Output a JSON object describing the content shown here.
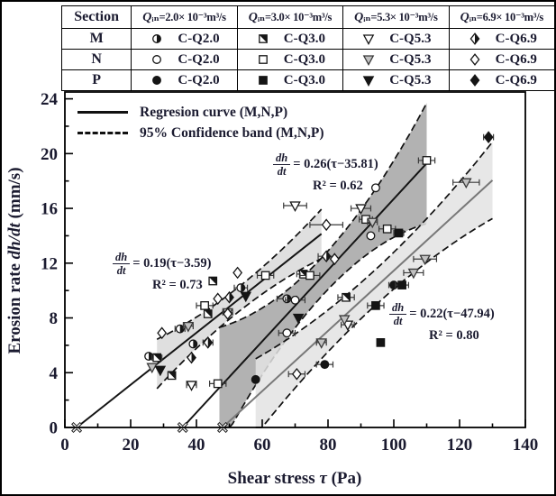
{
  "table": {
    "header_section": "Section",
    "q_headers": [
      {
        "q": "Q",
        "rest": "ᵢₙ=2.0× 10⁻³m³/s"
      },
      {
        "q": "Q",
        "rest": "ᵢₙ=3.0× 10⁻³m³/s"
      },
      {
        "q": "Q",
        "rest": "ᵢₙ=5.3× 10⁻³m³/s"
      },
      {
        "q": "Q",
        "rest": "ᵢₙ=6.9× 10⁻³m³/s"
      }
    ],
    "rows": [
      {
        "section": "M",
        "cells": [
          {
            "marker": "circle-half",
            "label": "C-Q2.0"
          },
          {
            "marker": "square-half",
            "label": "C-Q3.0"
          },
          {
            "marker": "tri-open",
            "label": "C-Q5.3"
          },
          {
            "marker": "diamond-half",
            "label": "C-Q6.9"
          }
        ]
      },
      {
        "section": "N",
        "cells": [
          {
            "marker": "circle-open",
            "label": "C-Q2.0"
          },
          {
            "marker": "square-open",
            "label": "C-Q3.0"
          },
          {
            "marker": "tri-gray",
            "label": "C-Q5.3"
          },
          {
            "marker": "diamond-open",
            "label": "C-Q6.9"
          }
        ]
      },
      {
        "section": "P",
        "cells": [
          {
            "marker": "circle-filled",
            "label": "C-Q2.0"
          },
          {
            "marker": "square-filled",
            "label": "C-Q3.0"
          },
          {
            "marker": "tri-filled",
            "label": "C-Q5.3"
          },
          {
            "marker": "diamond-filled",
            "label": "C-Q6.9"
          }
        ]
      }
    ]
  },
  "plot_legend": {
    "regression_label": "Regresion curve (M,N,P)",
    "confidence_label": "95% Confidence band (M,N,P)"
  },
  "equations": [
    {
      "num": "dh",
      "den": "dt",
      "rhs": "= 0.26(τ−35.81)",
      "r2": "R² = 0.62"
    },
    {
      "num": "dh",
      "den": "dt",
      "rhs": "= 0.19(τ−3.59)",
      "r2": "R² = 0.73"
    },
    {
      "num": "dh",
      "den": "dt",
      "rhs": "= 0.22(τ−47.94)",
      "r2": "R² = 0.80"
    }
  ],
  "axes": {
    "x_title_parts": [
      {
        "text": "Shear stress ",
        "italic": false
      },
      {
        "text": "τ ",
        "italic": true
      },
      {
        "text": "(Pa)",
        "italic": false
      }
    ],
    "y_title_parts": [
      {
        "text": "Erosion rate ",
        "italic": false
      },
      {
        "text": "dh/dt",
        "italic": true
      },
      {
        "text": " (mm/s)",
        "italic": false
      }
    ]
  },
  "chart_data": {
    "type": "scatter",
    "title": "",
    "xlabel": "Shear stress τ (Pa)",
    "ylabel": "Erosion rate dh/dt (mm/s)",
    "xlim": [
      0,
      140
    ],
    "ylim": [
      0,
      24.5
    ],
    "x_major_ticks": [
      "0",
      "20",
      "40",
      "60",
      "80",
      "100",
      "120",
      "140"
    ],
    "x_minor_step": 10,
    "y_major_ticks": [
      "0",
      "4",
      "8",
      "12",
      "16",
      "20",
      "24"
    ],
    "y_minor_step": 2,
    "grid": false,
    "legend_position": "top-left-inside",
    "regressions": [
      {
        "name": "regression-left",
        "equation": "dh/dt = 0.19(tau - 3.59)",
        "slope": 0.19,
        "x_intercept": 3.59,
        "r2": 0.73,
        "tau_end": 78,
        "line_color": "#141414",
        "band": {
          "tau_start": 28,
          "base_offset": 0.9,
          "bow": 0.9,
          "fill": "#c9c9c9",
          "opacity": 0.6
        }
      },
      {
        "name": "regression-middle",
        "equation": "dh/dt = 0.26(tau - 35.81)",
        "slope": 0.26,
        "x_intercept": 35.81,
        "r2": 0.62,
        "tau_end": 110,
        "line_color": "#141414",
        "band": {
          "tau_start": 47,
          "base_offset": 1.4,
          "bow": 3.0,
          "fill": "#9f9f9f",
          "opacity": 0.8
        }
      },
      {
        "name": "regression-right",
        "equation": "dh/dt = 0.22(tau - 47.94)",
        "slope": 0.22,
        "x_intercept": 47.94,
        "r2": 0.8,
        "tau_end": 130,
        "line_color": "#787878",
        "band": {
          "tau_start": 58,
          "base_offset": 1.3,
          "bow": 1.5,
          "fill": "#e3e3e3",
          "opacity": 0.85
        }
      }
    ],
    "series": [
      {
        "name": "M C-Q2.0",
        "marker": "circle-half",
        "points": [
          [
            25.5,
            5.2,
            0
          ],
          [
            35,
            7.2,
            1.5
          ],
          [
            39,
            6.1,
            0
          ],
          [
            53.5,
            10.2,
            2
          ],
          [
            67.5,
            9.4,
            3
          ]
        ]
      },
      {
        "name": "N C-Q2.0",
        "marker": "circle-open",
        "points": [
          [
            67.5,
            6.9,
            2.5
          ],
          [
            70,
            9.3,
            3
          ],
          [
            94.5,
            17.5,
            0
          ],
          [
            93,
            14,
            0
          ]
        ]
      },
      {
        "name": "P C-Q2.0",
        "marker": "circle-filled",
        "points": [
          [
            58,
            3.5,
            0
          ],
          [
            79,
            4.6,
            2.5
          ],
          [
            100,
            10.4,
            1.5
          ]
        ]
      },
      {
        "name": "M C-Q3.0",
        "marker": "square-half",
        "points": [
          [
            28,
            5.1,
            1.5
          ],
          [
            32.5,
            3.8,
            0
          ],
          [
            45,
            10.7,
            0
          ],
          [
            43.5,
            8.3,
            0
          ],
          [
            72.5,
            11.2,
            2
          ],
          [
            85.5,
            9.5,
            2.5
          ]
        ]
      },
      {
        "name": "N C-Q3.0",
        "marker": "square-open",
        "points": [
          [
            42.5,
            8.9,
            2.5
          ],
          [
            46.5,
            3.2,
            2.5
          ],
          [
            61,
            11.1,
            2.5
          ],
          [
            74.5,
            11.1,
            3
          ],
          [
            91.5,
            15.2,
            2
          ],
          [
            98,
            14.5,
            2.5
          ],
          [
            110,
            19.5,
            2.5
          ]
        ]
      },
      {
        "name": "P C-Q3.0",
        "marker": "square-filled",
        "points": [
          [
            94.5,
            8.9,
            2.5
          ],
          [
            96,
            6.2,
            0
          ],
          [
            101.5,
            14.2,
            1.5
          ],
          [
            102.5,
            10.4,
            2
          ]
        ]
      },
      {
        "name": "M C-Q5.3",
        "marker": "tri-open",
        "points": [
          [
            38.5,
            3.1,
            1.5
          ],
          [
            70,
            16.2,
            3.5
          ],
          [
            86,
            7.5,
            2
          ],
          [
            90,
            16,
            3
          ]
        ]
      },
      {
        "name": "N C-Q5.3",
        "marker": "tri-gray",
        "points": [
          [
            26.5,
            4.4,
            0
          ],
          [
            37.5,
            7.4,
            1.5
          ],
          [
            49.5,
            8.4,
            1.5
          ],
          [
            78,
            6.2,
            1.5
          ],
          [
            85,
            7.9,
            0
          ],
          [
            93.5,
            15,
            1.5
          ],
          [
            106,
            11.3,
            3
          ],
          [
            109.5,
            12.3,
            3.5
          ],
          [
            122,
            17.9,
            4
          ]
        ]
      },
      {
        "name": "P C-Q5.3",
        "marker": "tri-filled",
        "points": [
          [
            29,
            4.2,
            0
          ],
          [
            55,
            9.6,
            0
          ],
          [
            71,
            8,
            0
          ]
        ]
      },
      {
        "name": "M C-Q6.9",
        "marker": "diamond-half",
        "points": [
          [
            38.5,
            5.1,
            0
          ],
          [
            43.5,
            6.2,
            1.5
          ],
          [
            50,
            9.5,
            0
          ],
          [
            79.5,
            12.5,
            2.5
          ]
        ]
      },
      {
        "name": "N C-Q6.9",
        "marker": "diamond-open",
        "points": [
          [
            29.5,
            6.9,
            0
          ],
          [
            46.5,
            9.4,
            0
          ],
          [
            52.5,
            11.3,
            0
          ],
          [
            49.5,
            8.3,
            0
          ],
          [
            70.5,
            3.9,
            2.5
          ],
          [
            82,
            12.3,
            0
          ],
          [
            79.5,
            14.8,
            5
          ]
        ]
      },
      {
        "name": "P C-Q6.9",
        "marker": "diamond-filled",
        "points": [
          [
            128.8,
            21.2,
            1.5
          ]
        ]
      }
    ]
  }
}
